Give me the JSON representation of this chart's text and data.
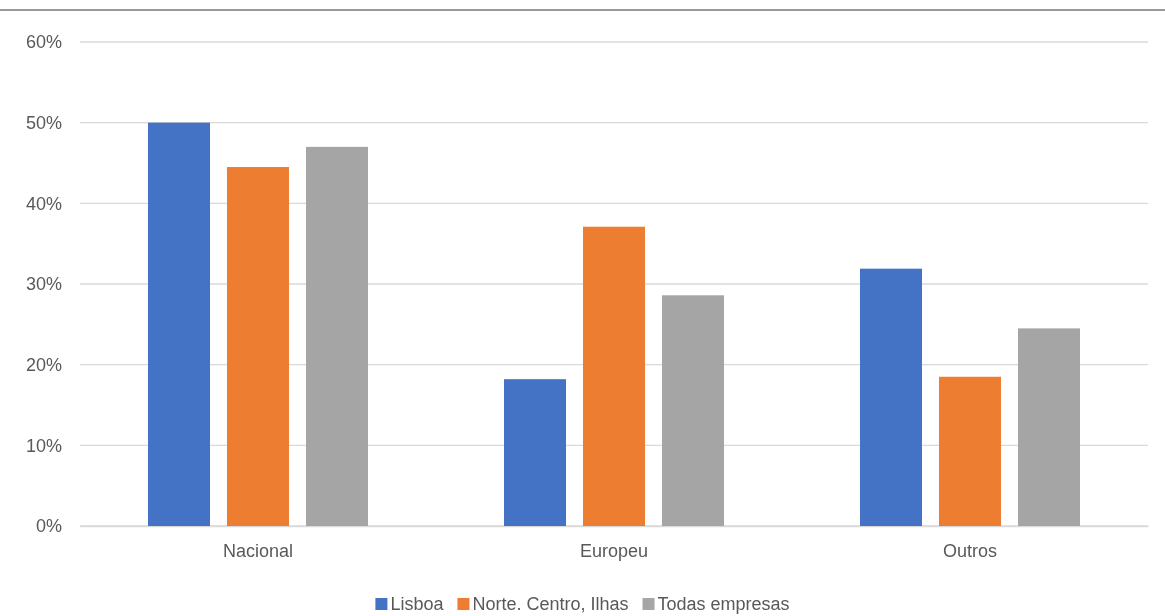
{
  "chart_data": {
    "type": "bar",
    "categories": [
      "Nacional",
      "Europeu",
      "Outros"
    ],
    "series": [
      {
        "name": "Lisboa",
        "color": "#4472c4",
        "values": [
          50,
          18.2,
          31.9
        ]
      },
      {
        "name": "Norte. Centro, Ilhas",
        "color": "#ed7d31",
        "values": [
          44.5,
          37.1,
          18.5
        ]
      },
      {
        "name": "Todas empresas",
        "color": "#a5a5a5",
        "values": [
          47,
          28.6,
          24.5
        ]
      }
    ],
    "ylim": [
      0,
      60
    ],
    "yticks": [
      {
        "value": 0,
        "label": "0%"
      },
      {
        "value": 10,
        "label": "10%"
      },
      {
        "value": 20,
        "label": "20%"
      },
      {
        "value": 30,
        "label": "30%"
      },
      {
        "value": 40,
        "label": "40%"
      },
      {
        "value": 50,
        "label": "50%"
      },
      {
        "value": 60,
        "label": "60%"
      }
    ],
    "grid": "y",
    "legend": "bottom"
  }
}
